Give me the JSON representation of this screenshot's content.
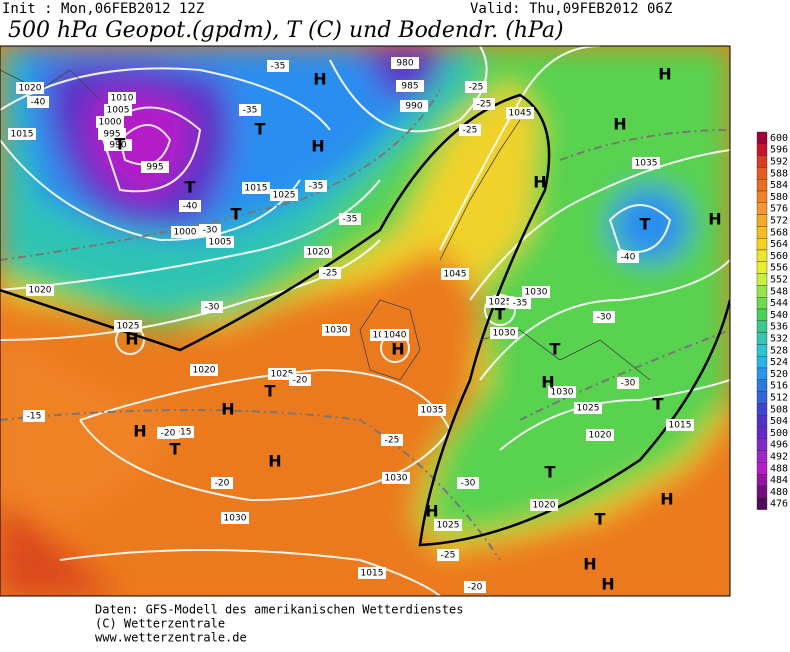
{
  "header": {
    "init": "Init : Mon,06FEB2012 12Z",
    "valid": "Valid: Thu,09FEB2012 06Z",
    "title": "500 hPa Geopot.(gpdm), T (C) und Bodendr. (hPa)"
  },
  "colorbar": {
    "ticks": [
      600,
      596,
      592,
      588,
      584,
      580,
      576,
      572,
      568,
      564,
      560,
      556,
      552,
      548,
      544,
      540,
      536,
      532,
      528,
      524,
      520,
      516,
      512,
      508,
      504,
      500,
      496,
      492,
      488,
      484,
      480,
      476
    ],
    "colors": [
      "#a0003c",
      "#c8142d",
      "#dc3c1e",
      "#e65a1e",
      "#eb6e1e",
      "#f08228",
      "#f59632",
      "#f5aa28",
      "#f5be1e",
      "#f5d21e",
      "#f0e628",
      "#e6f028",
      "#c8f03c",
      "#96e646",
      "#6edc50",
      "#46d25a",
      "#3cc88c",
      "#32c8b4",
      "#28c8d2",
      "#28b4e6",
      "#2896f0",
      "#287ddc",
      "#3264dc",
      "#3c46d2",
      "#5032c8",
      "#6428c8",
      "#8228c8",
      "#a028c8",
      "#b41ec8",
      "#9614a0",
      "#780a82",
      "#500a5a"
    ]
  },
  "map_labels": [
    "1020",
    "1015",
    "1010",
    "1005",
    "1000",
    "995",
    "990",
    "995",
    "1000",
    "1005",
    "1015",
    "1020",
    "1025",
    "1030",
    "1035",
    "1040",
    "1045",
    "1035",
    "1030",
    "1025",
    "1020",
    "1015",
    "1025",
    "1030",
    "1040",
    "1045",
    "980",
    "985",
    "990",
    "1030",
    "1020",
    "1025",
    "1015",
    "1025",
    "1020",
    "1030",
    "1025",
    "1020",
    "1015",
    "1030"
  ],
  "map_marks": [
    "H",
    "T",
    "T",
    "T",
    "H",
    "H",
    "T",
    "T",
    "H",
    "H",
    "H",
    "T",
    "H",
    "H",
    "T",
    "H",
    "H",
    "T",
    "H",
    "T",
    "H",
    "T",
    "H",
    "H",
    "T",
    "H",
    "H",
    "T"
  ],
  "temps": [
    "-40",
    "-35",
    "-35",
    "-30",
    "-30",
    "-25",
    "-25",
    "-20",
    "-20",
    "-15",
    "-20",
    "-25",
    "-25",
    "-30",
    "-35",
    "-40",
    "-35",
    "-30",
    "-25",
    "-20",
    "-30",
    "-35",
    "-40",
    "-25"
  ],
  "footer": [
    "Daten: GFS-Modell des amerikanischen Wetterdienstes",
    "(C) Wetterzentrale",
    "www.wetterzentrale.de"
  ]
}
